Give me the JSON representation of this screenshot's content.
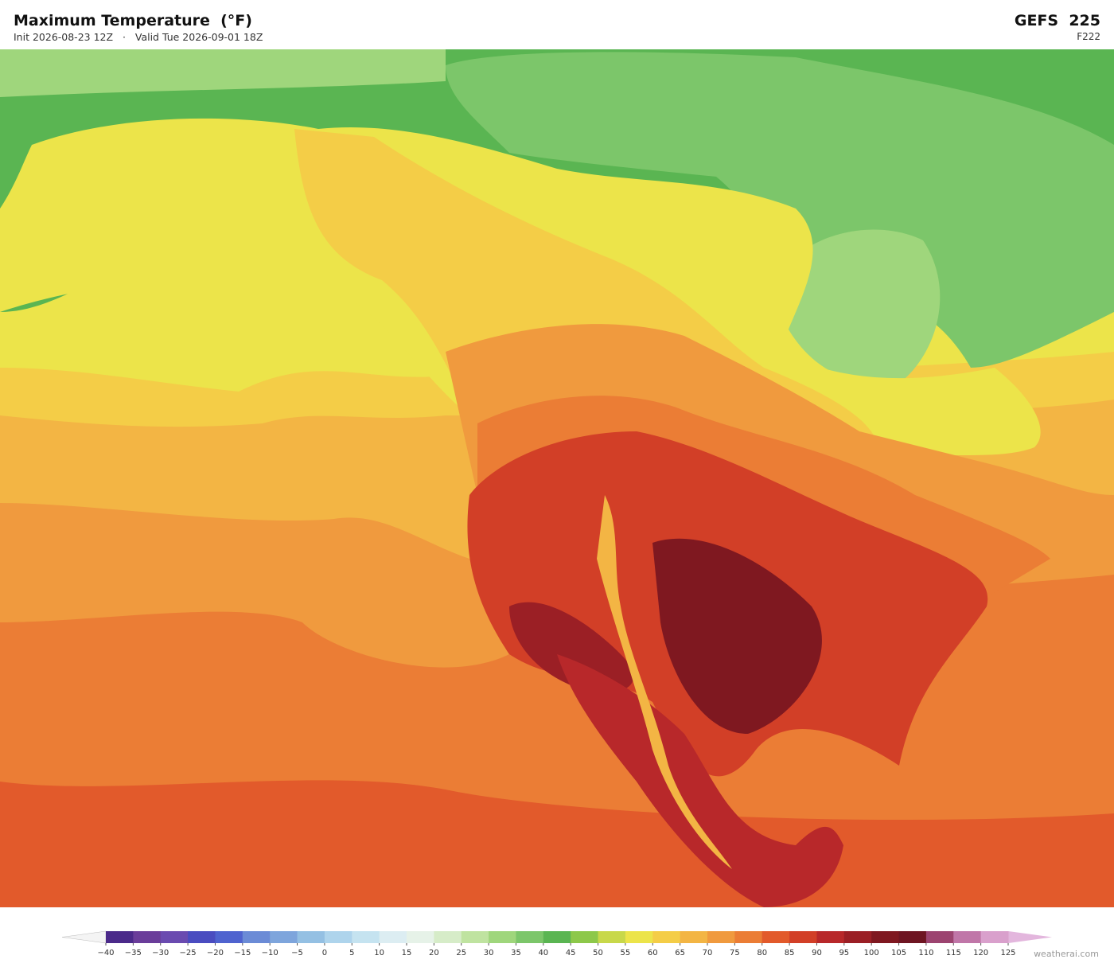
{
  "header": {
    "title": "Maximum Temperature  (°F)",
    "init": "Init 2026-08-23 12Z",
    "separator": "·",
    "valid": "Valid Tue 2026-09-01 18Z",
    "model": "GEFS  225",
    "forecast_hour": "F222"
  },
  "colorbar": {
    "ticks": [
      {
        "value": -40,
        "label": "−40"
      },
      {
        "value": -35,
        "label": "−35"
      },
      {
        "value": -30,
        "label": "−30"
      },
      {
        "value": -25,
        "label": "−25"
      },
      {
        "value": -20,
        "label": "−20"
      },
      {
        "value": -15,
        "label": "−15"
      },
      {
        "value": -10,
        "label": "−10"
      },
      {
        "value": -5,
        "label": "−5"
      },
      0,
      5,
      10,
      15,
      20,
      25,
      30,
      35,
      40,
      45,
      50,
      55,
      60,
      65,
      70,
      75,
      80,
      85,
      90,
      95,
      100,
      105,
      110,
      115,
      120,
      125
    ],
    "colors": [
      "#4b2a8a",
      "#6a3d9a",
      "#6a4bb0",
      "#4a4cc0",
      "#4f63cf",
      "#6b8bd6",
      "#7ea5dc",
      "#94c0e3",
      "#aed4ec",
      "#c5e3f0",
      "#dcedf2",
      "#e6f2e8",
      "#d6ecc8",
      "#bfe3a0",
      "#9fd67c",
      "#7cc66a",
      "#5ab552",
      "#8dc84a",
      "#c8d84a",
      "#ece44a",
      "#f4cd47",
      "#f3b544",
      "#f09a3e",
      "#eb7d35",
      "#e25a2b",
      "#d23f27",
      "#b8282a",
      "#9b1f25",
      "#7f1820",
      "#6e1522",
      "#9c4470",
      "#c076a8",
      "#d9a0cc"
    ],
    "under_color": "#f4f4f4",
    "over_color": "#e3b6dd"
  },
  "footer": {
    "credit": "weatherai.com"
  }
}
